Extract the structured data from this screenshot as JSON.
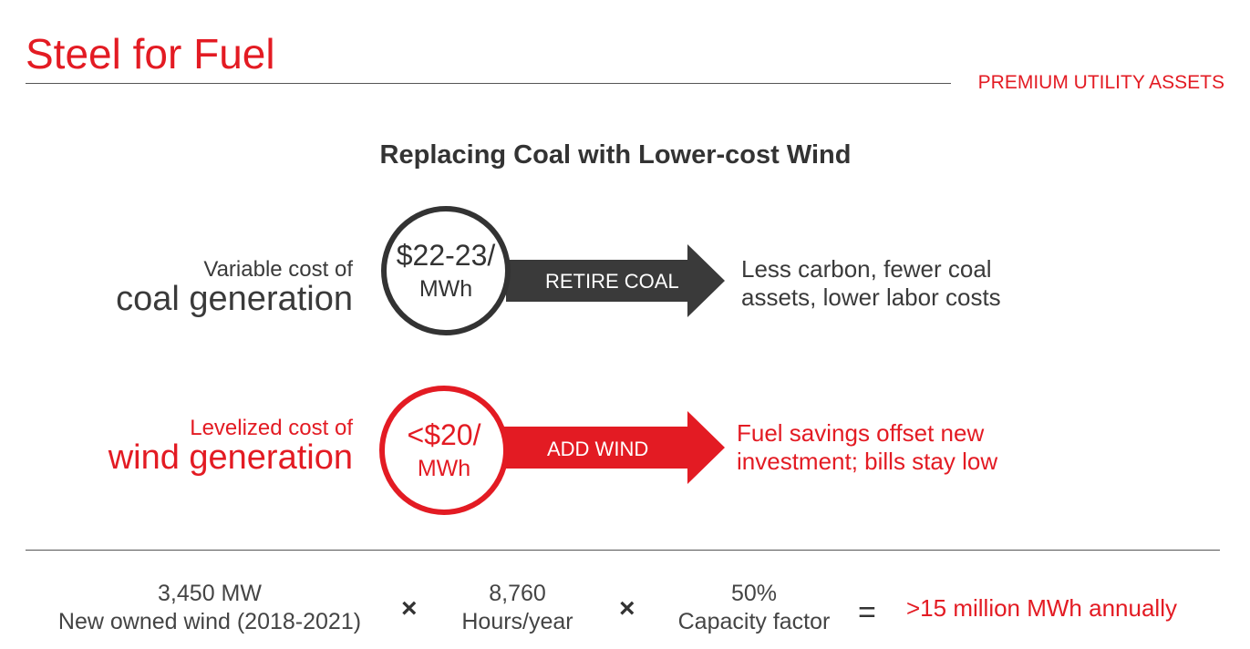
{
  "header": {
    "title": "Steel for Fuel",
    "section_tag": "PREMIUM UTILITY ASSETS"
  },
  "subtitle": "Replacing Coal with Lower-cost Wind",
  "coal": {
    "label_small": "Variable cost of",
    "label_big": "coal generation",
    "price": "$22-23/",
    "unit": "MWh",
    "action": "RETIRE COAL",
    "result_line1": "Less carbon, fewer coal",
    "result_line2": "assets, lower labor costs"
  },
  "wind": {
    "label_small": "Levelized cost of",
    "label_big": "wind generation",
    "price": "<$20/",
    "unit": "MWh",
    "action": "ADD WIND",
    "result_line1": "Fuel savings offset new",
    "result_line2": "investment; bills stay low"
  },
  "equation": {
    "term1_value": "3,450 MW",
    "term1_label": "New owned wind (2018-2021)",
    "times": "×",
    "term2_value": "8,760",
    "term2_label": "Hours/year",
    "term3_value": "50%",
    "term3_label": "Capacity factor",
    "equals": "=",
    "result": ">15 million MWh annually"
  },
  "colors": {
    "accent_red": "#e31b23",
    "dark_gray": "#333333"
  }
}
